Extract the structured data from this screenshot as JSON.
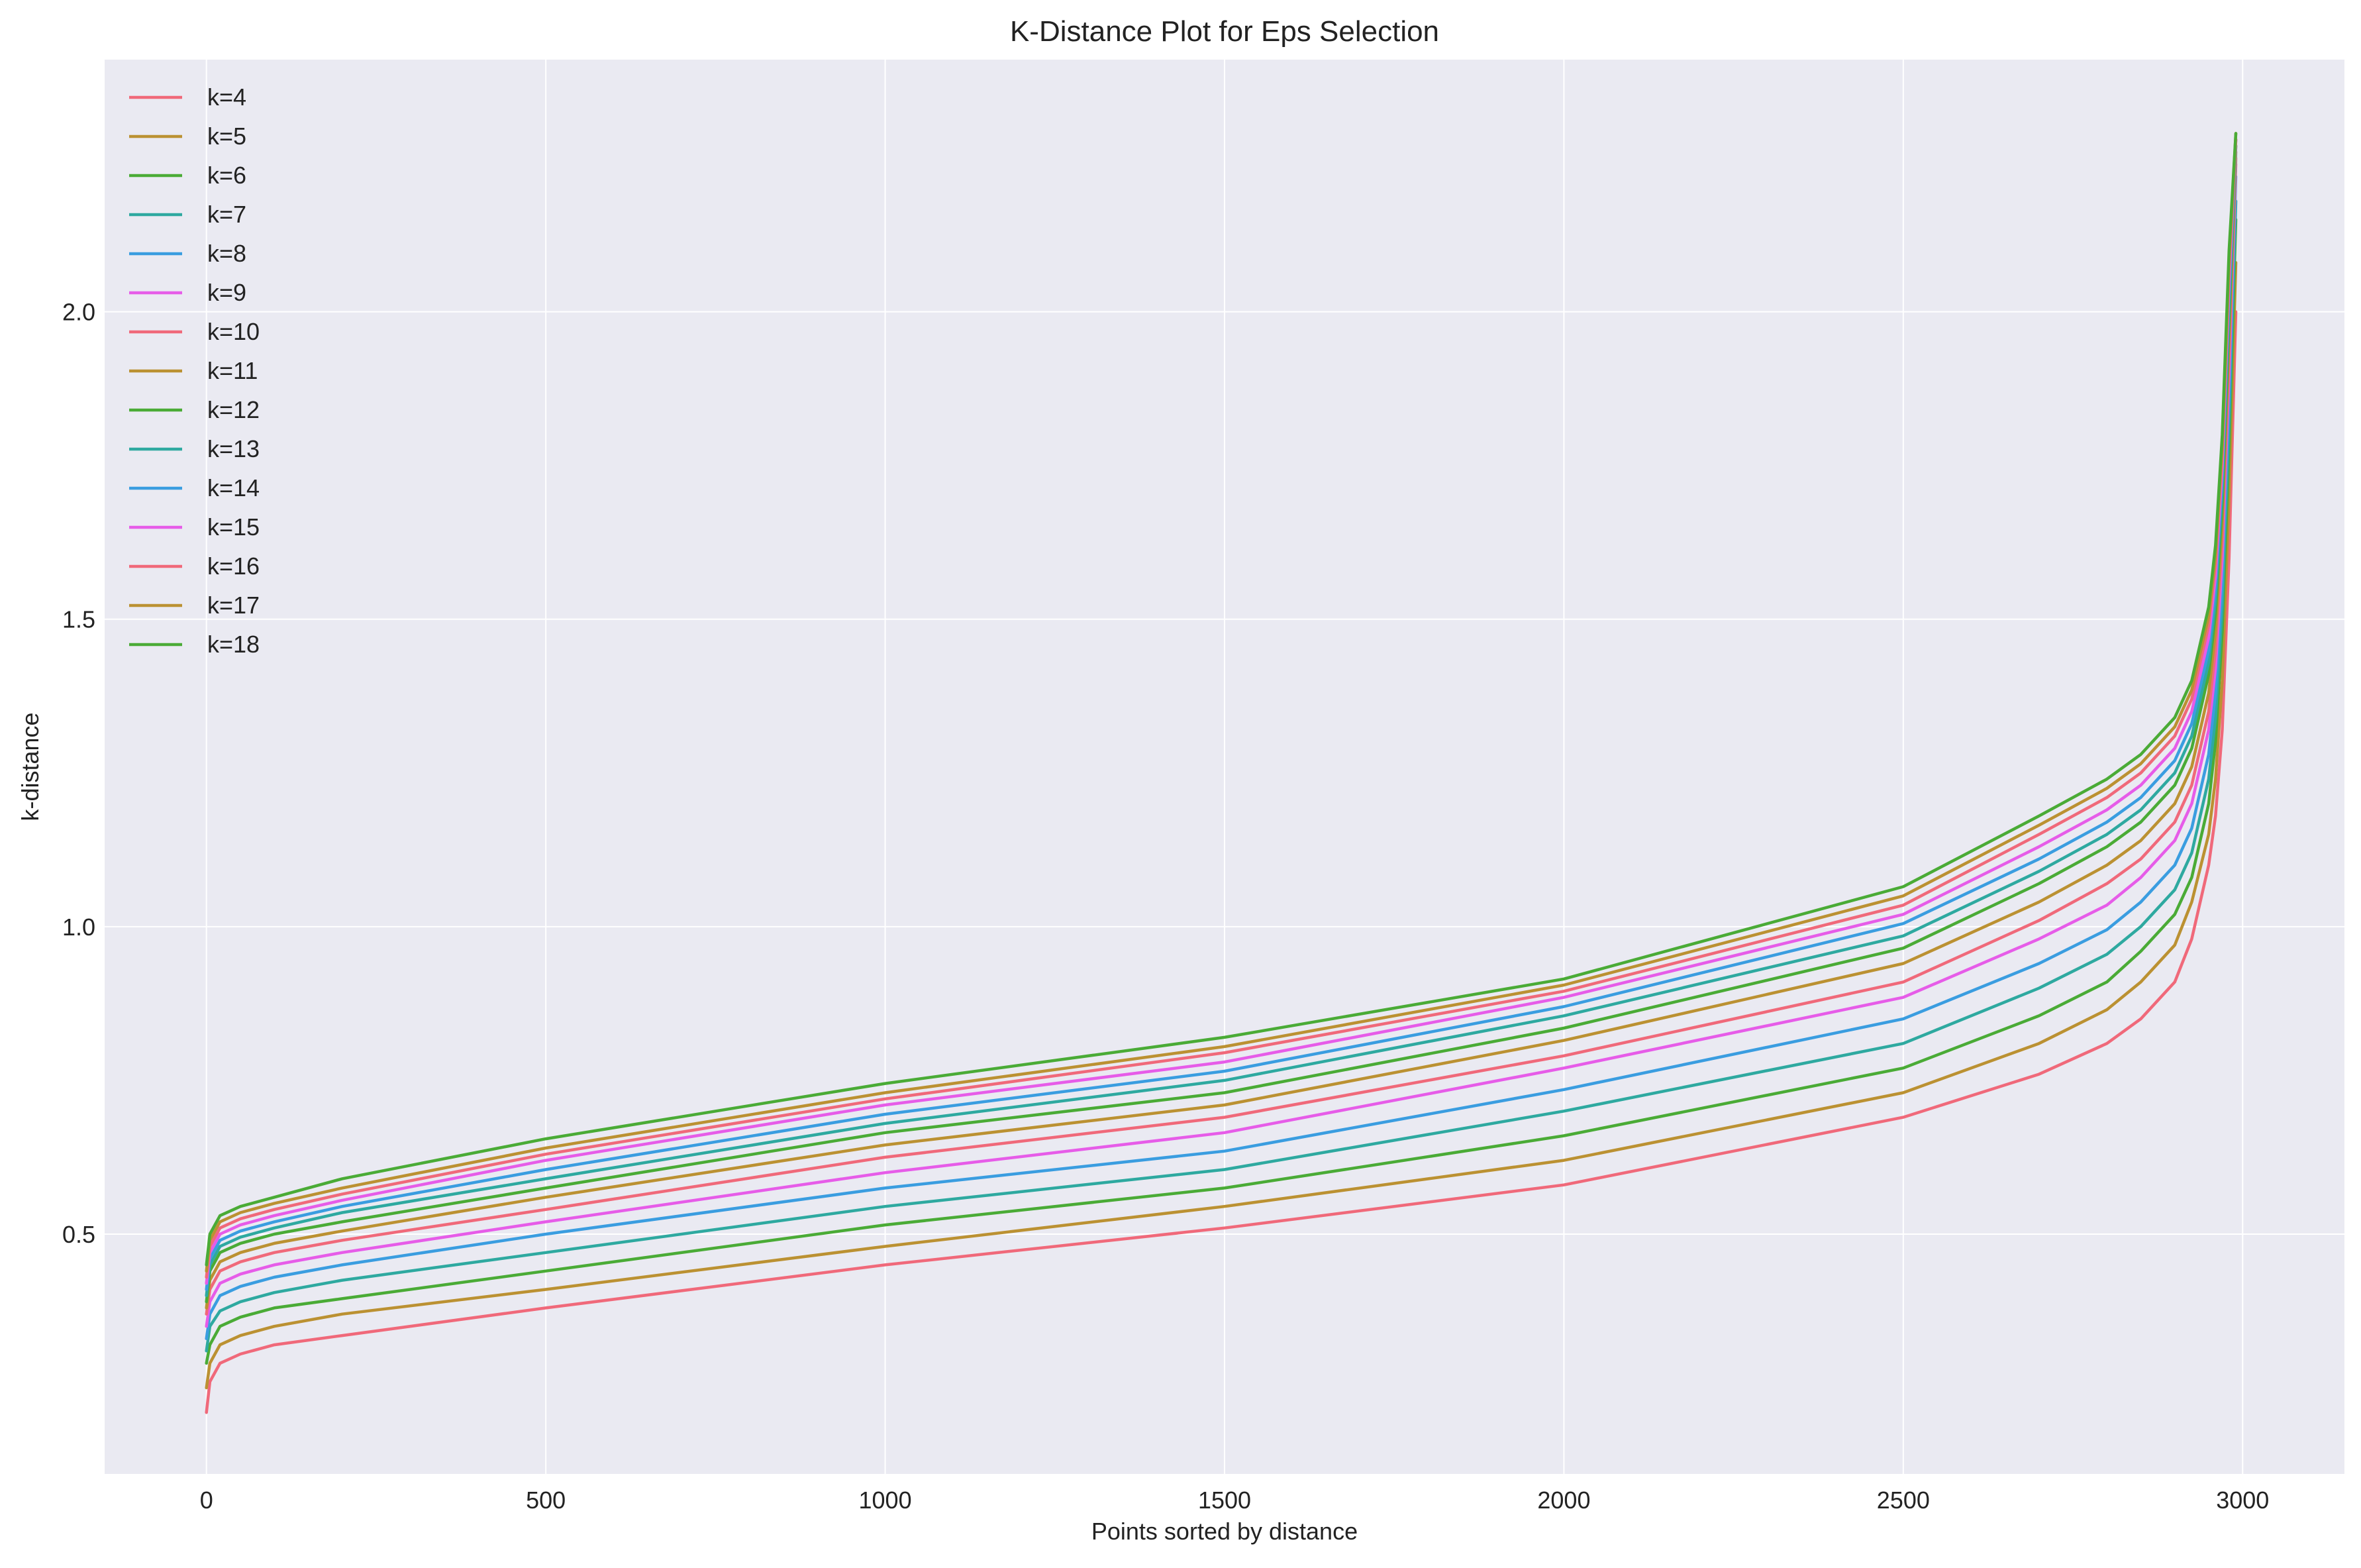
{
  "chart_data": {
    "type": "line",
    "title": "K-Distance Plot for Eps Selection",
    "xlabel": "Points sorted by distance",
    "ylabel": "k-distance",
    "xlim": [
      -150,
      3150
    ],
    "ylim": [
      0.11,
      2.41
    ],
    "x_ticks": [
      0,
      500,
      1000,
      1500,
      2000,
      2500,
      3000
    ],
    "x_tick_labels": [
      "0",
      "500",
      "1000",
      "1500",
      "2000",
      "2500",
      "3000"
    ],
    "y_ticks": [
      0.5,
      1.0,
      1.5,
      2.0
    ],
    "y_tick_labels": [
      "0.5",
      "1.0",
      "1.5",
      "2.0"
    ],
    "grid": true,
    "background": "#eaeaf2",
    "legend_position": "upper-left",
    "x": [
      0,
      5,
      20,
      50,
      100,
      200,
      500,
      1000,
      1500,
      2000,
      2500,
      2700,
      2800,
      2850,
      2900,
      2925,
      2950,
      2960,
      2970,
      2980,
      2990
    ],
    "series": [
      {
        "name": "k=4",
        "color": "#f0697a",
        "values": [
          0.21,
          0.26,
          0.29,
          0.305,
          0.32,
          0.335,
          0.38,
          0.45,
          0.51,
          0.58,
          0.69,
          0.76,
          0.81,
          0.85,
          0.91,
          0.98,
          1.1,
          1.18,
          1.32,
          1.6,
          2.0
        ]
      },
      {
        "name": "k=5",
        "color": "#bb9132",
        "values": [
          0.25,
          0.29,
          0.32,
          0.335,
          0.35,
          0.37,
          0.41,
          0.48,
          0.545,
          0.62,
          0.73,
          0.81,
          0.865,
          0.91,
          0.97,
          1.04,
          1.15,
          1.24,
          1.4,
          1.7,
          2.08
        ]
      },
      {
        "name": "k=6",
        "color": "#4aab36",
        "values": [
          0.29,
          0.32,
          0.35,
          0.365,
          0.38,
          0.395,
          0.44,
          0.515,
          0.575,
          0.66,
          0.77,
          0.855,
          0.91,
          0.96,
          1.02,
          1.08,
          1.2,
          1.3,
          1.48,
          1.78,
          2.15
        ]
      },
      {
        "name": "k=7",
        "color": "#2ea9a0",
        "values": [
          0.31,
          0.35,
          0.375,
          0.39,
          0.405,
          0.425,
          0.47,
          0.545,
          0.605,
          0.7,
          0.81,
          0.9,
          0.955,
          1.0,
          1.06,
          1.12,
          1.24,
          1.34,
          1.52,
          1.82,
          2.18
        ]
      },
      {
        "name": "k=8",
        "color": "#3a9de0",
        "values": [
          0.33,
          0.37,
          0.4,
          0.415,
          0.43,
          0.45,
          0.5,
          0.575,
          0.635,
          0.735,
          0.85,
          0.94,
          0.995,
          1.04,
          1.1,
          1.16,
          1.28,
          1.38,
          1.56,
          1.86,
          2.22
        ]
      },
      {
        "name": "k=9",
        "color": "#e65ce8",
        "values": [
          0.35,
          0.39,
          0.42,
          0.435,
          0.45,
          0.47,
          0.52,
          0.6,
          0.665,
          0.77,
          0.885,
          0.98,
          1.035,
          1.08,
          1.14,
          1.2,
          1.32,
          1.42,
          1.6,
          1.9,
          2.24
        ]
      },
      {
        "name": "k=10",
        "color": "#f0697a",
        "values": [
          0.37,
          0.41,
          0.44,
          0.455,
          0.47,
          0.49,
          0.54,
          0.625,
          0.69,
          0.79,
          0.91,
          1.01,
          1.07,
          1.11,
          1.17,
          1.23,
          1.35,
          1.45,
          1.63,
          1.93,
          2.25
        ]
      },
      {
        "name": "k=11",
        "color": "#bb9132",
        "values": [
          0.38,
          0.425,
          0.455,
          0.47,
          0.485,
          0.505,
          0.56,
          0.645,
          0.71,
          0.815,
          0.94,
          1.04,
          1.1,
          1.14,
          1.2,
          1.26,
          1.38,
          1.48,
          1.66,
          1.96,
          2.26
        ]
      },
      {
        "name": "k=12",
        "color": "#4aab36",
        "values": [
          0.39,
          0.44,
          0.47,
          0.485,
          0.5,
          0.52,
          0.575,
          0.665,
          0.73,
          0.835,
          0.965,
          1.07,
          1.13,
          1.17,
          1.23,
          1.29,
          1.41,
          1.51,
          1.69,
          1.99,
          2.27
        ]
      },
      {
        "name": "k=13",
        "color": "#2ea9a0",
        "values": [
          0.4,
          0.45,
          0.48,
          0.495,
          0.51,
          0.535,
          0.59,
          0.68,
          0.75,
          0.855,
          0.985,
          1.09,
          1.15,
          1.19,
          1.25,
          1.31,
          1.43,
          1.53,
          1.71,
          2.01,
          2.27
        ]
      },
      {
        "name": "k=14",
        "color": "#3a9de0",
        "values": [
          0.41,
          0.46,
          0.49,
          0.505,
          0.52,
          0.545,
          0.605,
          0.695,
          0.765,
          0.87,
          1.005,
          1.11,
          1.17,
          1.21,
          1.27,
          1.33,
          1.45,
          1.55,
          1.73,
          2.03,
          2.28
        ]
      },
      {
        "name": "k=15",
        "color": "#e65ce8",
        "values": [
          0.42,
          0.47,
          0.5,
          0.515,
          0.53,
          0.555,
          0.62,
          0.71,
          0.78,
          0.885,
          1.02,
          1.13,
          1.19,
          1.23,
          1.29,
          1.35,
          1.47,
          1.57,
          1.75,
          2.05,
          2.28
        ]
      },
      {
        "name": "k=16",
        "color": "#f0697a",
        "values": [
          0.43,
          0.48,
          0.51,
          0.525,
          0.54,
          0.565,
          0.63,
          0.72,
          0.795,
          0.895,
          1.035,
          1.15,
          1.21,
          1.25,
          1.31,
          1.37,
          1.49,
          1.59,
          1.77,
          2.07,
          2.28
        ]
      },
      {
        "name": "k=17",
        "color": "#bb9132",
        "values": [
          0.44,
          0.49,
          0.52,
          0.535,
          0.55,
          0.575,
          0.64,
          0.73,
          0.805,
          0.905,
          1.05,
          1.165,
          1.225,
          1.265,
          1.325,
          1.385,
          1.505,
          1.605,
          1.785,
          2.085,
          2.29
        ]
      },
      {
        "name": "k=18",
        "color": "#4aab36",
        "values": [
          0.45,
          0.5,
          0.53,
          0.545,
          0.56,
          0.59,
          0.655,
          0.745,
          0.82,
          0.915,
          1.065,
          1.18,
          1.24,
          1.28,
          1.34,
          1.4,
          1.52,
          1.62,
          1.8,
          2.1,
          2.29
        ]
      }
    ]
  }
}
